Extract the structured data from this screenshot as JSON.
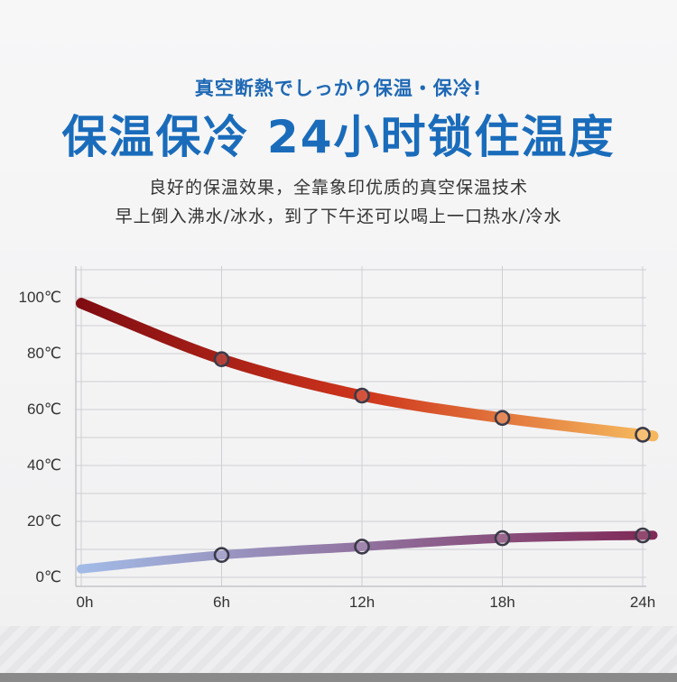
{
  "header": {
    "subtitle": "真空断熱でしっかり保温・保冷!",
    "title": "保温保冷 24小时锁住温度",
    "desc_line1": "良好的保温效果，全靠象印优质的真空保温技术",
    "desc_line2": "早上倒入沸水/冰水，到了下午还可以喝上一口热水/冷水"
  },
  "chart_data": {
    "type": "line",
    "x": [
      0,
      6,
      12,
      18,
      24
    ],
    "x_tick_labels": [
      "0h",
      "6h",
      "12h",
      "18h",
      "24h"
    ],
    "y_tick_labels": [
      "100℃",
      "80℃",
      "60℃",
      "40℃",
      "20℃",
      "0℃"
    ],
    "y_ticks": [
      100,
      80,
      60,
      40,
      20,
      0
    ],
    "ylim": [
      0,
      100
    ],
    "xlim": [
      0,
      24
    ],
    "grid": true,
    "series": [
      {
        "x": [
          0,
          6,
          12,
          18,
          24
        ],
        "values": [
          98,
          78,
          65,
          57,
          51
        ],
        "marker_x": [
          6,
          12,
          18,
          24
        ],
        "marker_values": [
          78,
          65,
          57,
          51
        ],
        "color_start": "#7a0006",
        "color_mid": "#cc2a10",
        "color_end": "#f5b455"
      },
      {
        "x": [
          0,
          6,
          12,
          18,
          24
        ],
        "values": [
          3,
          8,
          11,
          14,
          15
        ],
        "marker_x": [
          6,
          12,
          18,
          24
        ],
        "marker_values": [
          8,
          11,
          14,
          15
        ],
        "color_start": "#9eb8e6",
        "color_end": "#7a2050"
      }
    ]
  }
}
